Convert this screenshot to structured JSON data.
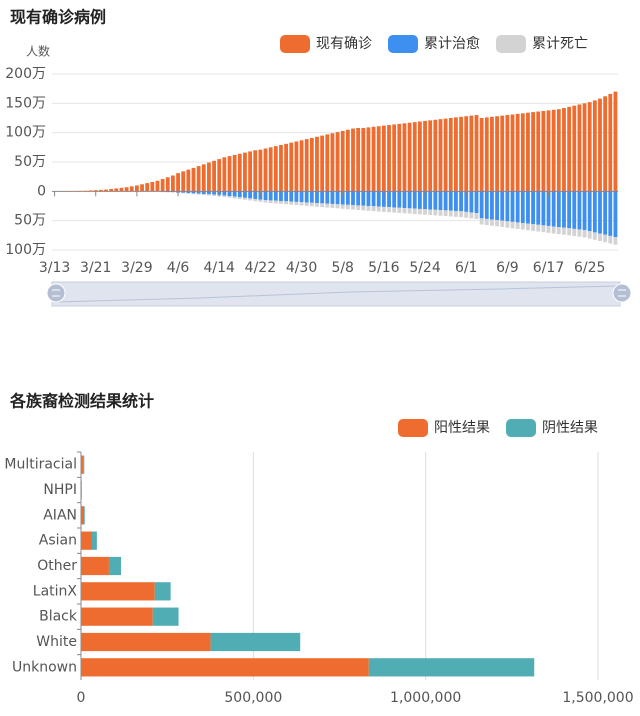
{
  "chart_data": [
    {
      "type": "bar",
      "stacked": true,
      "horizontal": false,
      "title": "现有确诊病例",
      "y_label": "人数",
      "grid": true,
      "categories": [
        "3/13",
        null,
        null,
        null,
        null,
        null,
        null,
        null,
        "3/21",
        null,
        null,
        null,
        null,
        null,
        null,
        null,
        "3/29",
        null,
        null,
        null,
        null,
        null,
        null,
        null,
        "4/6",
        null,
        null,
        null,
        null,
        null,
        null,
        null,
        "4/14",
        null,
        null,
        null,
        null,
        null,
        null,
        null,
        "4/22",
        null,
        null,
        null,
        null,
        null,
        null,
        null,
        "4/30",
        null,
        null,
        null,
        null,
        null,
        null,
        null,
        "5/8",
        null,
        null,
        null,
        null,
        null,
        null,
        null,
        "5/16",
        null,
        null,
        null,
        null,
        null,
        null,
        null,
        "5/24",
        null,
        null,
        null,
        null,
        null,
        null,
        null,
        "6/1",
        null,
        null,
        null,
        null,
        null,
        null,
        null,
        "6/9",
        null,
        null,
        null,
        null,
        null,
        null,
        null,
        "6/17",
        null,
        null,
        null,
        null,
        null,
        null,
        null,
        "6/25",
        null,
        null,
        null,
        null,
        null
      ],
      "series": [
        {
          "name": "现有确诊",
          "color": "#ee6c2f",
          "values": [
            0.1,
            0.2,
            0.3,
            0.4,
            0.6,
            0.8,
            1,
            1.5,
            2,
            2.5,
            3,
            4,
            5,
            6,
            7,
            8.5,
            10,
            12,
            14,
            16,
            18,
            21,
            24,
            27,
            31,
            34,
            37,
            40,
            43,
            46,
            49,
            52,
            55,
            58,
            60,
            62,
            64,
            66,
            68,
            70,
            71,
            73,
            75,
            77,
            79,
            81,
            83,
            85,
            87,
            89,
            91,
            93,
            95,
            97,
            99,
            101,
            103,
            105,
            107,
            108,
            108,
            109,
            110,
            111,
            112,
            113,
            114,
            115,
            116,
            117,
            118,
            119,
            120,
            121,
            122,
            123,
            124,
            125,
            126,
            127,
            128,
            129,
            130,
            125,
            126,
            127,
            128,
            129,
            130,
            131,
            132,
            133,
            134,
            135,
            136,
            137,
            138,
            139,
            140,
            142,
            144,
            146,
            148,
            150,
            152,
            155,
            158,
            162,
            166,
            170
          ]
        },
        {
          "name": "累计治愈",
          "color": "#3d8ff0",
          "values": [
            0,
            0,
            0,
            0,
            0,
            0,
            0,
            0,
            0,
            0,
            -0.1,
            -0.1,
            -0.2,
            -0.2,
            -0.3,
            -0.3,
            -0.4,
            -0.5,
            -0.6,
            -0.7,
            -0.8,
            -1,
            -1.2,
            -1.5,
            -2,
            -2.5,
            -3,
            -3.5,
            -4,
            -4.5,
            -5,
            -5.5,
            -6,
            -7,
            -8,
            -9,
            -10,
            -11,
            -12,
            -13,
            -14,
            -15,
            -15.5,
            -16,
            -16.5,
            -17,
            -17.5,
            -18,
            -18.5,
            -19,
            -19.5,
            -20,
            -20.5,
            -21,
            -21.5,
            -22,
            -22.5,
            -23,
            -23.5,
            -24,
            -24.5,
            -25,
            -25.5,
            -26,
            -26.5,
            -27,
            -27.5,
            -28,
            -28.5,
            -29,
            -29.5,
            -30,
            -30.5,
            -31,
            -31.5,
            -32,
            -32.5,
            -33,
            -33.5,
            -34,
            -35,
            -36,
            -37,
            -46,
            -47,
            -48,
            -49,
            -50,
            -51,
            -52,
            -53,
            -54,
            -55,
            -56,
            -57,
            -58,
            -59,
            -60,
            -61,
            -62,
            -63,
            -64,
            -65,
            -66,
            -68,
            -70,
            -72,
            -74,
            -76,
            -78
          ]
        },
        {
          "name": "累计死亡",
          "color": "#d3d3d3",
          "values": [
            0,
            0,
            0,
            0,
            0,
            0,
            0,
            0,
            0,
            0,
            0,
            0,
            0,
            -0.1,
            -0.1,
            -0.1,
            -0.2,
            -0.2,
            -0.3,
            -0.3,
            -0.4,
            -0.5,
            -0.6,
            -0.7,
            -0.8,
            -1,
            -1.2,
            -1.4,
            -1.6,
            -1.8,
            -2,
            -2.2,
            -2.4,
            -2.6,
            -2.8,
            -3,
            -3.2,
            -3.4,
            -3.6,
            -3.8,
            -4,
            -4.2,
            -4.4,
            -4.6,
            -4.8,
            -5,
            -5.2,
            -5.4,
            -5.6,
            -5.8,
            -6,
            -6.2,
            -6.4,
            -6.6,
            -6.8,
            -7,
            -7.2,
            -7.4,
            -7.6,
            -7.8,
            -8,
            -8.2,
            -8.3,
            -8.4,
            -8.5,
            -8.6,
            -8.7,
            -8.8,
            -8.9,
            -9,
            -9.1,
            -9.2,
            -9.3,
            -9.4,
            -9.5,
            -9.6,
            -9.7,
            -9.8,
            -9.9,
            -10,
            -10.1,
            -10.2,
            -10.3,
            -10.4,
            -10.5,
            -10.6,
            -10.7,
            -10.8,
            -10.9,
            -11,
            -11.1,
            -11.2,
            -11.3,
            -11.4,
            -11.5,
            -11.6,
            -11.7,
            -11.8,
            -11.9,
            -12,
            -12.1,
            -12.2,
            -12.3,
            -12.4,
            -12.5,
            -12.6,
            -12.7,
            -12.8,
            -12.9,
            -13
          ]
        }
      ],
      "ylim": [
        -100,
        200
      ],
      "yticks": [
        {
          "value": -100,
          "label": "100万"
        },
        {
          "value": -50,
          "label": "50万"
        },
        0,
        {
          "value": 50,
          "label": "50万"
        },
        {
          "value": 100,
          "label": "100万"
        },
        {
          "value": 150,
          "label": "150万"
        },
        {
          "value": 200,
          "label": "200万"
        }
      ]
    },
    {
      "type": "bar",
      "stacked": true,
      "horizontal": true,
      "title": "各族裔检测结果统计",
      "grid": true,
      "categories": [
        "Multiracial",
        "NHPI",
        "AIAN",
        "Asian",
        "Other",
        "LatinX",
        "Black",
        "White",
        "Unknown"
      ],
      "series": [
        {
          "name": "阳性结果",
          "color": "#ee6c2f",
          "values": [
            8000,
            2000,
            9000,
            32000,
            81000,
            214000,
            208000,
            376000,
            835000
          ]
        },
        {
          "name": "阴性结果",
          "color": "#4fadb3",
          "values": [
            1500,
            500,
            2000,
            14000,
            35000,
            46000,
            75000,
            260000,
            480000
          ]
        }
      ],
      "xlim": [
        0,
        1500000
      ],
      "xticks": [
        0,
        {
          "value": 500000,
          "label": "500,000"
        },
        {
          "value": 1000000,
          "label": "1,000,000"
        },
        {
          "value": 1500000,
          "label": "1,500,000"
        }
      ]
    }
  ]
}
